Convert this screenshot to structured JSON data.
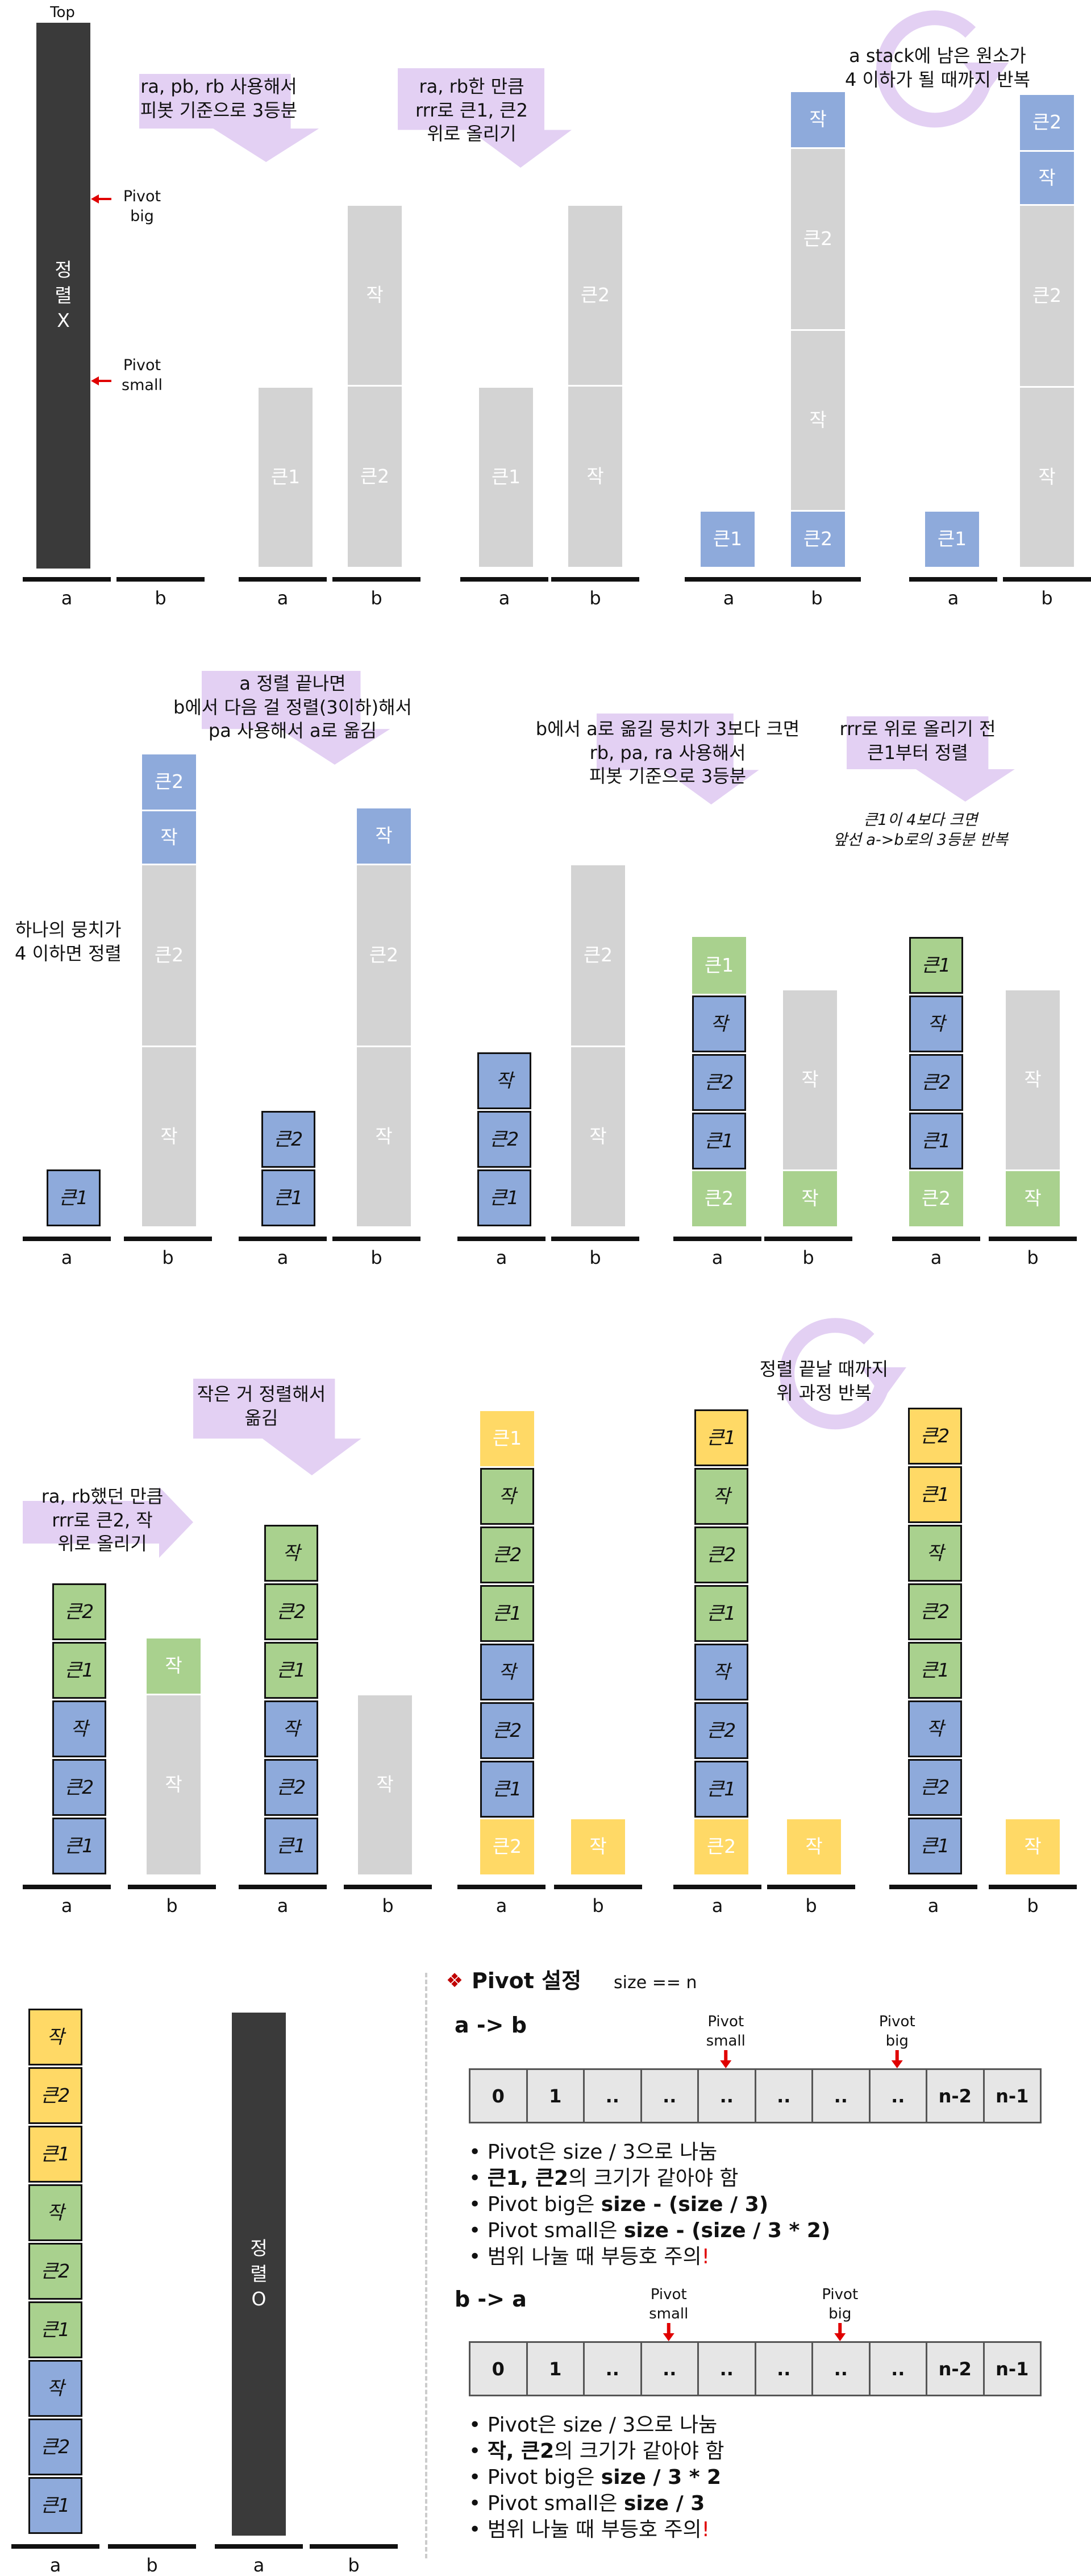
{
  "labels": {
    "top": "Top",
    "a": "a",
    "b": "b",
    "pivot_big": "Pivot\nbig",
    "pivot_small": "Pivot\nsmall",
    "big1": "큰1",
    "big2": "큰2",
    "small": "작",
    "unsorted": "정\n렬\nX",
    "sorted": "정\n렬\nO"
  },
  "notes": {
    "n1": "ra, pb, rb 사용해서\n피봇 기준으로 3등분",
    "n2": "ra, rb한 만큼\nrrr로 큰1, 큰2\n위로 올리기",
    "n3": "a stack에 남은 원소가\n4 이하가 될 때까지 반복",
    "n4": "하나의 뭉치가\n4 이하면 정렬",
    "n5": "a 정렬 끝나면\nb에서 다음 걸 정렬(3이하)해서\npa 사용해서 a로 옮김",
    "n6": "b에서 a로 옮길 뭉치가 3보다 크면\nrb, pa, ra 사용해서\n피봇 기준으로 3등분",
    "n7": "rrr로 위로 올리기 전\n큰1부터 정렬",
    "n8": "큰1이 4보다 크면\n앞선 a->b로의 3등분 반복",
    "n9": "ra, rb했던 만큼\nrrr로 큰2, 작\n위로 올리기",
    "n10": "작은 거 정렬해서\n옮김",
    "n11": "정렬 끝날 때까지\n위 과정 반복"
  },
  "pivot": {
    "symbol": "❖",
    "title": "Pivot 설정",
    "size_eq": "size == n",
    "cells": [
      "0",
      "1",
      "..",
      "..",
      "..",
      "..",
      "..",
      "..",
      "n-2",
      "n-1"
    ],
    "ab": {
      "heading": "a -> b",
      "marker_small": "Pivot\nsmall",
      "marker_big": "Pivot\nbig",
      "bullets": [
        {
          "plain": "Pivot은 size / 3으로 나눔"
        },
        {
          "bold": "큰1, 큰2",
          "rest": "의 크기가 같아야 함"
        },
        {
          "pre": "Pivot big은 ",
          "bold": "size - (size / 3)"
        },
        {
          "pre": "Pivot small은 ",
          "bold": "size - (size / 3 * 2)"
        },
        {
          "pre": "범위 나눌 때 부등호 주의",
          "bang": "!"
        }
      ]
    },
    "ba": {
      "heading": "b -> a",
      "marker_small": "Pivot\nsmall",
      "marker_big": "Pivot\nbig",
      "bullets": [
        {
          "plain": "Pivot은 size / 3으로 나눔"
        },
        {
          "bold": "작, 큰2",
          "rest": "의 크기가 같아야 함"
        },
        {
          "pre": "Pivot big은 ",
          "bold": "size / 3 * 2"
        },
        {
          "pre": "Pivot small은 ",
          "bold": "size / 3"
        },
        {
          "pre": "범위 나눌 때 부등호 주의",
          "bang": "!"
        }
      ]
    }
  },
  "colors": {
    "gray": "#d3d3d3",
    "blue": "#8eaadb",
    "green": "#a9d18e",
    "yellow": "#ffd966",
    "dark": "#3a3a3a",
    "arrow": "#e3d0f3",
    "marker": "#e00000"
  }
}
